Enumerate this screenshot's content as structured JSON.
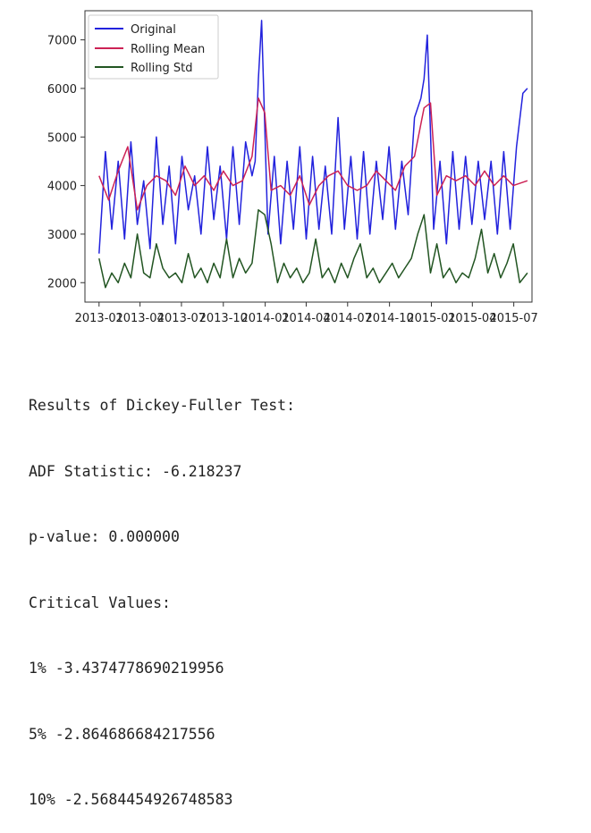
{
  "chart_data": {
    "type": "line",
    "title": "",
    "xlabel": "",
    "ylabel": "",
    "xlim": [
      "2012-12-01",
      "2015-08-10"
    ],
    "ylim": [
      1600,
      7600
    ],
    "yticks": [
      2000,
      3000,
      4000,
      5000,
      6000,
      7000
    ],
    "xtick_labels": [
      "2013-01",
      "2013-04",
      "2013-07",
      "2013-10",
      "2014-01",
      "2014-04",
      "2014-07",
      "2014-10",
      "2015-01",
      "2015-04",
      "2015-07"
    ],
    "xtick_dates": [
      "2013-01-01",
      "2013-04-01",
      "2013-07-01",
      "2013-10-01",
      "2014-01-01",
      "2014-04-01",
      "2014-07-01",
      "2014-10-01",
      "2015-01-01",
      "2015-04-01",
      "2015-07-01"
    ],
    "legend_position": "top-left",
    "grid": false,
    "series": [
      {
        "name": "Original",
        "color": "#2222dd",
        "x": [
          "2013-01-01",
          "2013-01-15",
          "2013-01-29",
          "2013-02-12",
          "2013-02-26",
          "2013-03-12",
          "2013-03-26",
          "2013-04-09",
          "2013-04-23",
          "2013-05-07",
          "2013-05-21",
          "2013-06-04",
          "2013-06-18",
          "2013-07-02",
          "2013-07-16",
          "2013-07-30",
          "2013-08-13",
          "2013-08-27",
          "2013-09-10",
          "2013-09-24",
          "2013-10-08",
          "2013-10-22",
          "2013-11-05",
          "2013-11-19",
          "2013-12-03",
          "2013-12-10",
          "2013-12-17",
          "2013-12-24",
          "2014-01-07",
          "2014-01-21",
          "2014-02-04",
          "2014-02-18",
          "2014-03-04",
          "2014-03-18",
          "2014-04-01",
          "2014-04-15",
          "2014-04-29",
          "2014-05-13",
          "2014-05-27",
          "2014-06-10",
          "2014-06-24",
          "2014-07-08",
          "2014-07-22",
          "2014-08-05",
          "2014-08-19",
          "2014-09-02",
          "2014-09-16",
          "2014-09-30",
          "2014-10-14",
          "2014-10-28",
          "2014-11-11",
          "2014-11-25",
          "2014-12-09",
          "2014-12-16",
          "2014-12-23",
          "2015-01-06",
          "2015-01-20",
          "2015-02-03",
          "2015-02-17",
          "2015-03-03",
          "2015-03-17",
          "2015-03-31",
          "2015-04-14",
          "2015-04-28",
          "2015-05-12",
          "2015-05-26",
          "2015-06-09",
          "2015-06-23",
          "2015-07-07",
          "2015-07-21",
          "2015-07-31"
        ],
        "y": [
          2600,
          4700,
          3100,
          4500,
          2900,
          4900,
          3200,
          4100,
          2700,
          5000,
          3200,
          4400,
          2800,
          4600,
          3500,
          4200,
          3000,
          4800,
          3300,
          4400,
          2900,
          4800,
          3200,
          4900,
          4200,
          4500,
          6200,
          7400,
          3000,
          4600,
          2800,
          4500,
          3100,
          4800,
          2900,
          4600,
          3100,
          4400,
          3000,
          5400,
          3100,
          4600,
          2900,
          4700,
          3000,
          4500,
          3300,
          4800,
          3100,
          4500,
          3400,
          5400,
          5800,
          6200,
          7100,
          3100,
          4500,
          2800,
          4700,
          3100,
          4600,
          3200,
          4500,
          3300,
          4500,
          3000,
          4700,
          3100,
          4800,
          5900,
          6000
        ]
      },
      {
        "name": "Rolling Mean",
        "color": "#cc2255",
        "x": [
          "2013-01-01",
          "2013-01-22",
          "2013-02-12",
          "2013-03-05",
          "2013-03-26",
          "2013-04-16",
          "2013-05-07",
          "2013-05-28",
          "2013-06-18",
          "2013-07-09",
          "2013-07-30",
          "2013-08-20",
          "2013-09-10",
          "2013-10-01",
          "2013-10-22",
          "2013-11-12",
          "2013-12-03",
          "2013-12-17",
          "2013-12-31",
          "2014-01-14",
          "2014-02-04",
          "2014-02-25",
          "2014-03-18",
          "2014-04-08",
          "2014-04-29",
          "2014-05-20",
          "2014-06-10",
          "2014-07-01",
          "2014-07-22",
          "2014-08-12",
          "2014-09-02",
          "2014-09-23",
          "2014-10-14",
          "2014-11-04",
          "2014-11-25",
          "2014-12-16",
          "2014-12-30",
          "2015-01-13",
          "2015-02-03",
          "2015-02-24",
          "2015-03-17",
          "2015-04-07",
          "2015-04-28",
          "2015-05-19",
          "2015-06-09",
          "2015-06-30",
          "2015-07-31"
        ],
        "y": [
          4200,
          3700,
          4300,
          4800,
          3500,
          4000,
          4200,
          4100,
          3800,
          4400,
          4000,
          4200,
          3900,
          4300,
          4000,
          4100,
          4600,
          5800,
          5500,
          3900,
          4000,
          3800,
          4200,
          3600,
          4000,
          4200,
          4300,
          4000,
          3900,
          4000,
          4300,
          4100,
          3900,
          4400,
          4600,
          5600,
          5700,
          3800,
          4200,
          4100,
          4200,
          4000,
          4300,
          4000,
          4200,
          4000,
          4100
        ]
      },
      {
        "name": "Rolling Std",
        "color": "#225522",
        "x": [
          "2013-01-01",
          "2013-01-15",
          "2013-01-29",
          "2013-02-12",
          "2013-02-26",
          "2013-03-12",
          "2013-03-26",
          "2013-04-09",
          "2013-04-23",
          "2013-05-07",
          "2013-05-21",
          "2013-06-04",
          "2013-06-18",
          "2013-07-02",
          "2013-07-16",
          "2013-07-30",
          "2013-08-13",
          "2013-08-27",
          "2013-09-10",
          "2013-09-24",
          "2013-10-08",
          "2013-10-22",
          "2013-11-05",
          "2013-11-19",
          "2013-12-03",
          "2013-12-17",
          "2013-12-31",
          "2014-01-14",
          "2014-01-28",
          "2014-02-11",
          "2014-02-25",
          "2014-03-11",
          "2014-03-25",
          "2014-04-08",
          "2014-04-22",
          "2014-05-06",
          "2014-05-20",
          "2014-06-03",
          "2014-06-17",
          "2014-07-01",
          "2014-07-15",
          "2014-07-29",
          "2014-08-12",
          "2014-08-26",
          "2014-09-09",
          "2014-09-23",
          "2014-10-07",
          "2014-10-21",
          "2014-11-04",
          "2014-11-18",
          "2014-12-02",
          "2014-12-16",
          "2014-12-30",
          "2015-01-13",
          "2015-01-27",
          "2015-02-10",
          "2015-02-24",
          "2015-03-10",
          "2015-03-24",
          "2015-04-07",
          "2015-04-21",
          "2015-05-05",
          "2015-05-19",
          "2015-06-02",
          "2015-06-16",
          "2015-06-30",
          "2015-07-14",
          "2015-07-31"
        ],
        "y": [
          2500,
          1900,
          2200,
          2000,
          2400,
          2100,
          3000,
          2200,
          2100,
          2800,
          2300,
          2100,
          2200,
          2000,
          2600,
          2100,
          2300,
          2000,
          2400,
          2100,
          2900,
          2100,
          2500,
          2200,
          2400,
          3500,
          3400,
          2800,
          2000,
          2400,
          2100,
          2300,
          2000,
          2200,
          2900,
          2100,
          2300,
          2000,
          2400,
          2100,
          2500,
          2800,
          2100,
          2300,
          2000,
          2200,
          2400,
          2100,
          2300,
          2500,
          3000,
          3400,
          2200,
          2800,
          2100,
          2300,
          2000,
          2200,
          2100,
          2500,
          3100,
          2200,
          2600,
          2100,
          2400,
          2800,
          2000,
          2200
        ]
      }
    ]
  },
  "results": {
    "title": "Results of Dickey-Fuller Test:",
    "adf": "ADF Statistic: -6.218237",
    "pvalue": "p-value: 0.000000",
    "critical_header": "Critical Values:",
    "cv1": "1% -3.4374778690219956",
    "cv5": "5% -2.864686684217556",
    "cv10": "10% -2.5684454926748583"
  }
}
